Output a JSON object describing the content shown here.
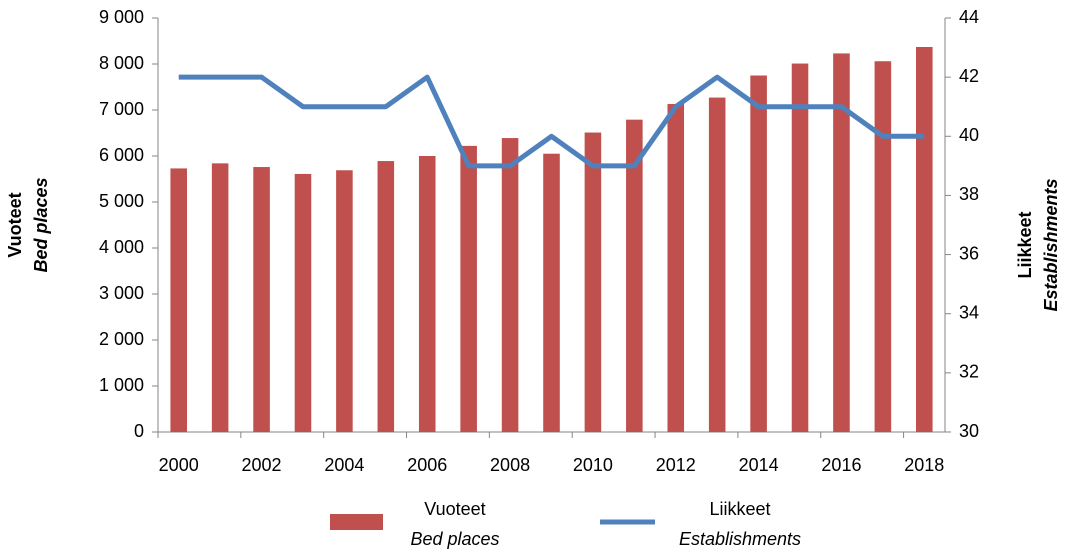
{
  "chart_data": {
    "type": "bar_line",
    "categories": [
      "2000",
      null,
      "2002",
      null,
      "2004",
      null,
      "2006",
      null,
      "2008",
      null,
      "2010",
      null,
      "2012",
      null,
      "2014",
      null,
      "2016",
      null,
      "2018"
    ],
    "series": [
      {
        "name": "Vuoteet",
        "name_en": "Bed places",
        "type": "bar",
        "color": "#c0504d",
        "axis": "y",
        "values": [
          5730,
          5840,
          5760,
          5610,
          5690,
          5890,
          6000,
          6220,
          6390,
          6050,
          6510,
          6790,
          7130,
          7270,
          7750,
          8010,
          8230,
          8060,
          8370
        ]
      },
      {
        "name": "Liikkeet",
        "name_en": "Establishments",
        "type": "line",
        "color": "#4f81bd",
        "axis": "y2",
        "values": [
          42,
          42,
          42,
          41,
          41,
          41,
          42,
          39,
          39,
          40,
          39,
          39,
          41,
          42,
          41,
          41,
          41,
          40,
          40
        ]
      }
    ],
    "ylabel": "Vuoteet",
    "ylabel_en": "Bed places",
    "y2label": "Liikkeet",
    "y2label_en": "Establishments",
    "ylim": [
      0,
      9000
    ],
    "yticks": [
      0,
      {
        "value": 1000,
        "label": "1 000"
      },
      {
        "value": 2000,
        "label": "2 000"
      },
      {
        "value": 3000,
        "label": "3 000"
      },
      {
        "value": 4000,
        "label": "4 000"
      },
      {
        "value": 5000,
        "label": "5 000"
      },
      {
        "value": 6000,
        "label": "6 000"
      },
      {
        "value": 7000,
        "label": "7 000"
      },
      {
        "value": 8000,
        "label": "8 000"
      },
      {
        "value": 9000,
        "label": "9 000"
      }
    ],
    "y2lim": [
      30,
      44
    ],
    "y2ticks": [
      30,
      32,
      34,
      36,
      38,
      40,
      42,
      44
    ],
    "grid": false,
    "legend": "bottom"
  }
}
